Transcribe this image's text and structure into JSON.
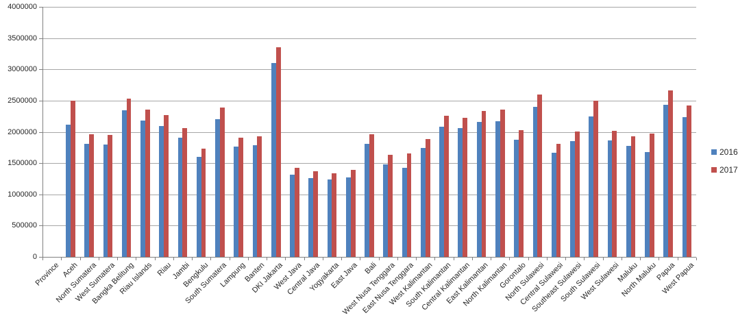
{
  "chart_data": {
    "type": "bar",
    "title": "",
    "xlabel": "",
    "ylabel": "",
    "grid": true,
    "legend_position": "right",
    "ylim": [
      0,
      4000000
    ],
    "ytick_step": 500000,
    "ytick_labels": [
      "0",
      "500000",
      "1000000",
      "1500000",
      "2000000",
      "2500000",
      "3000000",
      "3500000",
      "4000000"
    ],
    "categories": [
      "Province",
      "Aceh",
      "North Sumatera",
      "West Sumatera",
      "Bangka Belitung",
      "Riau Islands",
      "Riau",
      "Jambi",
      "Bengkulu",
      "South Sumatera",
      "Lampung",
      "Banten",
      "DKI Jakarta",
      "West Java",
      "Central Java",
      "Yogyakarta",
      "East Java",
      "Bali",
      "West Nusa Tenggara",
      "East Nusa Tenggara",
      "West Kalimantan",
      "South Kalimantan",
      "Central Kalimantan",
      "East Kalimantan",
      "North Kalimantan",
      "Gorontalo",
      "North Sulawesi",
      "Central Sulawesi",
      "Southeast Sulawesi",
      "South Sulawesi",
      "West Sulawesi",
      "Maluku",
      "North Maluku",
      "Papua",
      "West Papua"
    ],
    "series": [
      {
        "name": "2016",
        "color": "#4F81BD",
        "values": [
          null,
          2118500,
          1811875,
          1800725,
          2341500,
          2178710,
          2095000,
          1906650,
          1605000,
          2206000,
          1763000,
          1784000,
          3100000,
          1312355,
          1265000,
          1237700,
          1273490,
          1807600,
          1482950,
          1425000,
          1739400,
          2085050,
          2057558,
          2161253,
          2175340,
          1875000,
          2400000,
          1670000,
          1850000,
          2250000,
          1864000,
          1775000,
          1681266,
          2435000,
          2237000
        ]
      },
      {
        "name": "2017",
        "color": "#C0504D",
        "values": [
          null,
          2500000,
          1961354,
          1949285,
          2534673,
          2358454,
          2266722,
          2063000,
          1730000,
          2388000,
          1908447,
          1931180,
          3355750,
          1420624,
          1367000,
          1337645,
          1388000,
          1956727,
          1631245,
          1650000,
          1882900,
          2258000,
          2227307,
          2339556,
          2358800,
          2030000,
          2598000,
          1807775,
          2002625,
          2500000,
          2017780,
          1925000,
          1975000,
          2663646,
          2416855
        ]
      }
    ]
  },
  "legend": {
    "item_2016": "2016",
    "item_2017": "2017"
  }
}
